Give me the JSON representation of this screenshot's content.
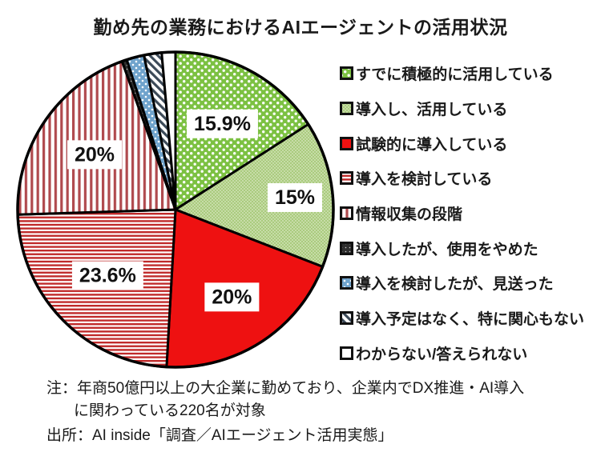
{
  "chart_data": {
    "type": "pie",
    "title": "勤め先の業務におけるAIエージェントの活用状況",
    "direction": "clockwise",
    "start_angle_deg": 0,
    "legend_position": "right",
    "slices": [
      {
        "label": "すでに積極的に活用している",
        "value": 15.9,
        "display_label": "15.9%",
        "pattern": "green-dots",
        "color": "#7CC142"
      },
      {
        "label": "導入し、活用している",
        "value": 15.0,
        "display_label": "15%",
        "pattern": "green-fine-mesh",
        "color": "#AACB7E"
      },
      {
        "label": "試験的に導入している",
        "value": 20.0,
        "display_label": "20%",
        "pattern": "solid",
        "color": "#EE1111"
      },
      {
        "label": "導入を検討している",
        "value": 23.6,
        "display_label": "23.6%",
        "pattern": "red-h-stripes",
        "color": "#C02A2A"
      },
      {
        "label": "情報収集の段階",
        "value": 20.0,
        "display_label": "20%",
        "pattern": "red-v-stripes",
        "color": "#B04A4E"
      },
      {
        "label": "導入したが、使用をやめた",
        "value": 0.5,
        "display_label": "",
        "pattern": "dark-dots",
        "color": "#2E2E2E"
      },
      {
        "label": "導入を検討したが、見送った",
        "value": 1.8,
        "display_label": "",
        "pattern": "blue-dots",
        "color": "#6FA3CC"
      },
      {
        "label": "導入予定はなく、特に関心もない",
        "value": 1.8,
        "display_label": "",
        "pattern": "dark-diagonal",
        "color": "#3C4A58"
      },
      {
        "label": "わからない/答えられない",
        "value": 1.4,
        "display_label": "",
        "pattern": "white",
        "color": "#FFFFFF"
      }
    ]
  },
  "notes": {
    "line1": "注：年商50億円以上の大企業に勤めており、企業内でDX推進・AI導入",
    "line2": "に関わっている220名が対象",
    "source": "出所：AI inside「調査／AIエージェント活用実態」"
  }
}
